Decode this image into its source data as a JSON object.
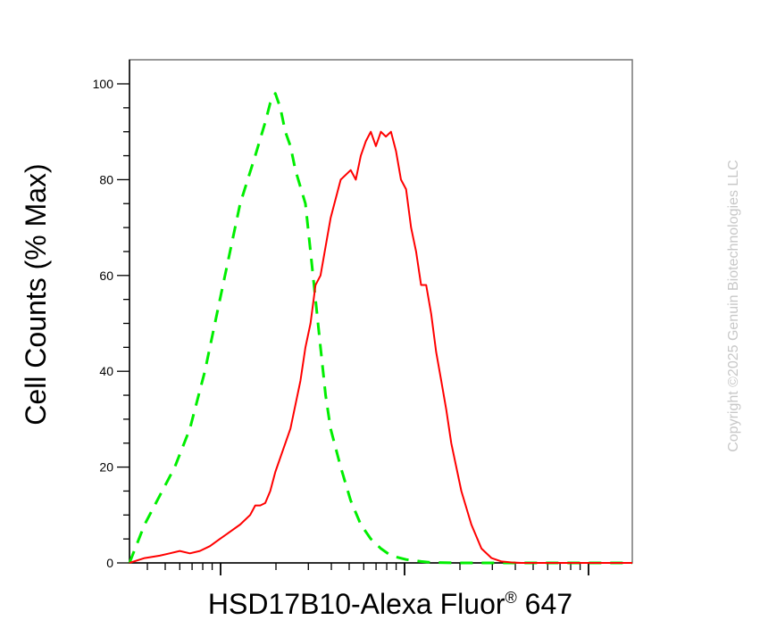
{
  "chart_data": {
    "type": "line",
    "xlabel": "HSD17B10-Alexa Fluor",
    "xlabel_sup": "®",
    "xlabel_tail": " 647",
    "ylabel": "Cell Counts (% Max)",
    "x_scale": "log",
    "ylim": [
      0,
      105
    ],
    "yticks": [
      "0",
      "20",
      "40",
      "60",
      "80",
      "100"
    ],
    "grid": false,
    "copyright": "Copyright ©2025 Genuin Biotechnologies LLC",
    "series": [
      {
        "style": "dashed",
        "color": "#00ee00",
        "x": [
          0.0,
          0.03,
          0.06,
          0.09,
          0.12,
          0.15,
          0.18,
          0.2,
          0.22,
          0.25,
          0.27,
          0.28,
          0.29,
          0.3,
          0.31,
          0.32,
          0.33,
          0.35,
          0.36,
          0.37,
          0.38,
          0.39,
          0.4,
          0.42,
          0.44,
          0.46,
          0.48,
          0.5,
          0.52,
          0.55,
          0.58,
          0.6,
          0.65,
          0.7,
          1.0
        ],
        "y": [
          0,
          8,
          14,
          20,
          28,
          40,
          55,
          65,
          75,
          85,
          92,
          96,
          98,
          95,
          90,
          87,
          82,
          75,
          65,
          55,
          45,
          35,
          28,
          20,
          13,
          8,
          5,
          3,
          1.5,
          0.7,
          0.3,
          0.1,
          0,
          0,
          0
        ]
      },
      {
        "style": "solid",
        "color": "#ff0000",
        "x": [
          0.0,
          0.03,
          0.06,
          0.08,
          0.1,
          0.12,
          0.14,
          0.16,
          0.18,
          0.2,
          0.22,
          0.24,
          0.25,
          0.26,
          0.27,
          0.28,
          0.29,
          0.3,
          0.32,
          0.34,
          0.35,
          0.36,
          0.37,
          0.38,
          0.4,
          0.42,
          0.44,
          0.45,
          0.46,
          0.47,
          0.48,
          0.49,
          0.5,
          0.51,
          0.52,
          0.53,
          0.54,
          0.55,
          0.56,
          0.57,
          0.58,
          0.59,
          0.6,
          0.61,
          0.62,
          0.63,
          0.64,
          0.66,
          0.68,
          0.7,
          0.72,
          0.74,
          0.76,
          0.78,
          0.8,
          0.82,
          0.85,
          0.9,
          0.95,
          1.0
        ],
        "y": [
          0,
          1,
          1.5,
          2,
          2.5,
          2,
          2.5,
          3.5,
          5,
          6.5,
          8,
          10,
          12,
          12,
          12.5,
          15,
          19,
          22,
          28,
          38,
          45,
          50,
          58,
          60,
          72,
          80,
          82,
          80,
          85,
          88,
          90,
          87,
          90,
          89,
          90,
          86,
          80,
          78,
          70,
          65,
          58,
          58,
          52,
          44,
          38,
          32,
          25,
          15,
          8,
          3,
          1,
          0.3,
          0.1,
          0,
          0,
          0,
          0,
          0,
          0,
          0
        ]
      }
    ]
  }
}
